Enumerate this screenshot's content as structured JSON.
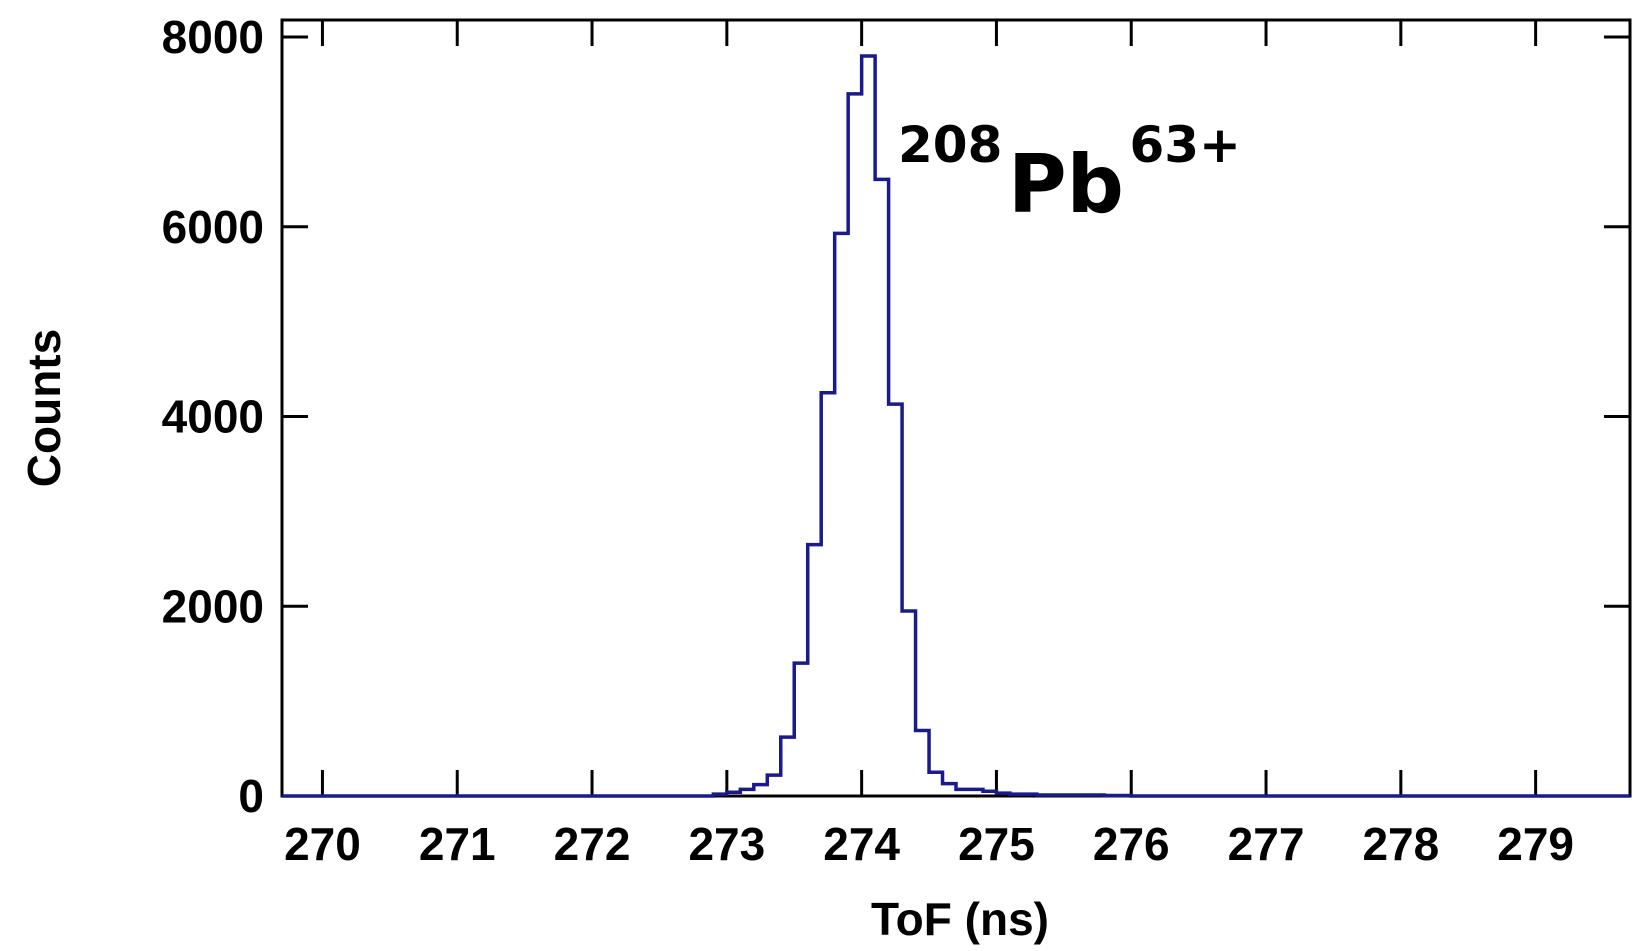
{
  "chart_data": {
    "type": "histogram",
    "xlabel": "ToF (ns)",
    "ylabel": "Counts",
    "xlim": [
      269.7,
      279.7
    ],
    "ylim": [
      0,
      8000
    ],
    "x_ticks": [
      "270",
      "271",
      "272",
      "273",
      "274",
      "275",
      "276",
      "277",
      "278",
      "279"
    ],
    "y_ticks": [
      "0",
      "2000",
      "4000",
      "6000",
      "8000"
    ],
    "grid": false,
    "line_color": "#1a1a8c",
    "bin_width": 0.1,
    "bins": [
      {
        "x": 272.9,
        "y": 20
      },
      {
        "x": 273.0,
        "y": 40
      },
      {
        "x": 273.1,
        "y": 70
      },
      {
        "x": 273.2,
        "y": 120
      },
      {
        "x": 273.3,
        "y": 220
      },
      {
        "x": 273.4,
        "y": 620
      },
      {
        "x": 273.5,
        "y": 1400
      },
      {
        "x": 273.6,
        "y": 2650
      },
      {
        "x": 273.7,
        "y": 4250
      },
      {
        "x": 273.8,
        "y": 5930
      },
      {
        "x": 273.9,
        "y": 7400
      },
      {
        "x": 274.0,
        "y": 7800
      },
      {
        "x": 274.1,
        "y": 6500
      },
      {
        "x": 274.2,
        "y": 4130
      },
      {
        "x": 274.3,
        "y": 1950
      },
      {
        "x": 274.4,
        "y": 690
      },
      {
        "x": 274.5,
        "y": 250
      },
      {
        "x": 274.6,
        "y": 130
      },
      {
        "x": 274.7,
        "y": 70
      },
      {
        "x": 274.8,
        "y": 70
      },
      {
        "x": 274.9,
        "y": 50
      },
      {
        "x": 275.0,
        "y": 30
      },
      {
        "x": 275.1,
        "y": 20
      },
      {
        "x": 275.2,
        "y": 20
      },
      {
        "x": 275.3,
        "y": 10
      },
      {
        "x": 275.4,
        "y": 10
      },
      {
        "x": 275.5,
        "y": 10
      },
      {
        "x": 275.6,
        "y": 10
      },
      {
        "x": 275.7,
        "y": 10
      },
      {
        "x": 275.8,
        "y": 5
      },
      {
        "x": 275.9,
        "y": 5
      }
    ],
    "annotation": {
      "mass_number": "208",
      "element": "Pb",
      "charge": "63+"
    }
  }
}
